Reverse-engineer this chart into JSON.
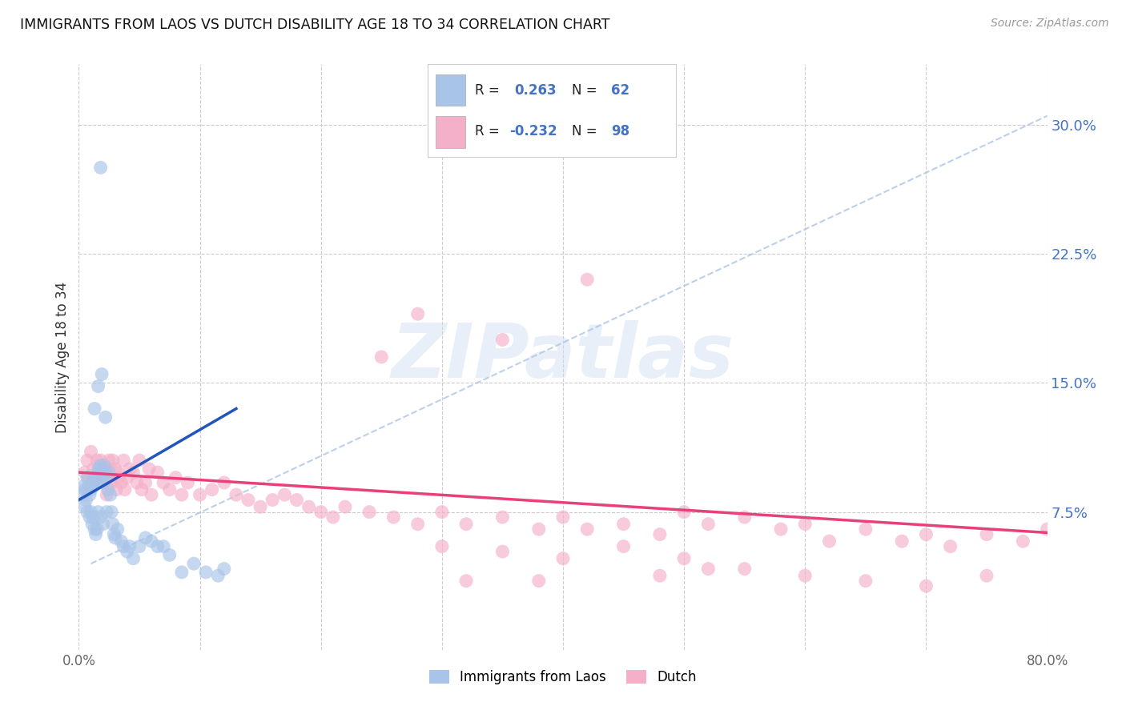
{
  "title": "IMMIGRANTS FROM LAOS VS DUTCH DISABILITY AGE 18 TO 34 CORRELATION CHART",
  "source": "Source: ZipAtlas.com",
  "ylabel": "Disability Age 18 to 34",
  "xlim": [
    0.0,
    0.8
  ],
  "ylim": [
    -0.005,
    0.335
  ],
  "xticks": [
    0.0,
    0.1,
    0.2,
    0.3,
    0.4,
    0.5,
    0.6,
    0.7,
    0.8
  ],
  "xticklabels": [
    "0.0%",
    "",
    "",
    "",
    "",
    "",
    "",
    "",
    "80.0%"
  ],
  "ytick_positions": [
    0.075,
    0.15,
    0.225,
    0.3
  ],
  "ytick_labels": [
    "7.5%",
    "15.0%",
    "22.5%",
    "30.0%"
  ],
  "blue_color": "#a8c4e8",
  "pink_color": "#f4b0c8",
  "blue_line_color": "#2255bb",
  "pink_line_color": "#e8407a",
  "dashed_line_color": "#b0c8e8",
  "watermark_text": "ZIPatlas",
  "background_color": "#ffffff",
  "grid_color": "#cccccc",
  "blue_scatter_x": [
    0.003,
    0.004,
    0.005,
    0.005,
    0.006,
    0.007,
    0.007,
    0.008,
    0.009,
    0.009,
    0.01,
    0.01,
    0.011,
    0.011,
    0.012,
    0.012,
    0.013,
    0.013,
    0.014,
    0.014,
    0.015,
    0.015,
    0.016,
    0.016,
    0.017,
    0.018,
    0.018,
    0.019,
    0.02,
    0.02,
    0.021,
    0.022,
    0.023,
    0.024,
    0.025,
    0.026,
    0.027,
    0.028,
    0.029,
    0.03,
    0.032,
    0.035,
    0.037,
    0.04,
    0.042,
    0.045,
    0.05,
    0.055,
    0.06,
    0.065,
    0.07,
    0.075,
    0.085,
    0.095,
    0.105,
    0.115,
    0.12,
    0.013,
    0.016,
    0.019,
    0.022,
    0.018
  ],
  "blue_scatter_y": [
    0.085,
    0.09,
    0.088,
    0.078,
    0.082,
    0.095,
    0.075,
    0.09,
    0.085,
    0.072,
    0.088,
    0.075,
    0.092,
    0.068,
    0.09,
    0.072,
    0.095,
    0.065,
    0.092,
    0.062,
    0.095,
    0.065,
    0.1,
    0.075,
    0.098,
    0.102,
    0.072,
    0.095,
    0.092,
    0.068,
    0.102,
    0.098,
    0.075,
    0.088,
    0.098,
    0.085,
    0.075,
    0.068,
    0.062,
    0.06,
    0.065,
    0.058,
    0.055,
    0.052,
    0.055,
    0.048,
    0.055,
    0.06,
    0.058,
    0.055,
    0.055,
    0.05,
    0.04,
    0.045,
    0.04,
    0.038,
    0.042,
    0.135,
    0.148,
    0.155,
    0.13,
    0.275
  ],
  "pink_scatter_x": [
    0.005,
    0.007,
    0.008,
    0.01,
    0.011,
    0.012,
    0.013,
    0.015,
    0.016,
    0.017,
    0.018,
    0.019,
    0.02,
    0.021,
    0.022,
    0.023,
    0.025,
    0.026,
    0.027,
    0.028,
    0.03,
    0.031,
    0.032,
    0.033,
    0.035,
    0.037,
    0.038,
    0.04,
    0.042,
    0.045,
    0.048,
    0.05,
    0.052,
    0.055,
    0.058,
    0.06,
    0.065,
    0.07,
    0.075,
    0.08,
    0.085,
    0.09,
    0.1,
    0.11,
    0.12,
    0.13,
    0.14,
    0.15,
    0.16,
    0.17,
    0.18,
    0.19,
    0.2,
    0.21,
    0.22,
    0.24,
    0.26,
    0.28,
    0.3,
    0.32,
    0.35,
    0.38,
    0.4,
    0.42,
    0.45,
    0.48,
    0.5,
    0.52,
    0.55,
    0.58,
    0.6,
    0.62,
    0.65,
    0.68,
    0.7,
    0.72,
    0.75,
    0.78,
    0.8,
    0.3,
    0.35,
    0.4,
    0.45,
    0.5,
    0.55,
    0.25,
    0.35,
    0.28,
    0.42,
    0.32,
    0.38,
    0.48,
    0.52,
    0.6,
    0.65,
    0.7,
    0.75
  ],
  "pink_scatter_y": [
    0.098,
    0.105,
    0.095,
    0.11,
    0.09,
    0.1,
    0.095,
    0.105,
    0.098,
    0.092,
    0.105,
    0.098,
    0.1,
    0.092,
    0.1,
    0.085,
    0.105,
    0.095,
    0.092,
    0.105,
    0.1,
    0.088,
    0.098,
    0.095,
    0.092,
    0.105,
    0.088,
    0.095,
    0.1,
    0.098,
    0.092,
    0.105,
    0.088,
    0.092,
    0.1,
    0.085,
    0.098,
    0.092,
    0.088,
    0.095,
    0.085,
    0.092,
    0.085,
    0.088,
    0.092,
    0.085,
    0.082,
    0.078,
    0.082,
    0.085,
    0.082,
    0.078,
    0.075,
    0.072,
    0.078,
    0.075,
    0.072,
    0.068,
    0.075,
    0.068,
    0.072,
    0.065,
    0.072,
    0.065,
    0.068,
    0.062,
    0.075,
    0.068,
    0.072,
    0.065,
    0.068,
    0.058,
    0.065,
    0.058,
    0.062,
    0.055,
    0.062,
    0.058,
    0.065,
    0.055,
    0.052,
    0.048,
    0.055,
    0.048,
    0.042,
    0.165,
    0.175,
    0.19,
    0.21,
    0.035,
    0.035,
    0.038,
    0.042,
    0.038,
    0.035,
    0.032,
    0.038
  ],
  "blue_trendline_x": [
    0.0,
    0.13
  ],
  "blue_trendline_y": [
    0.082,
    0.135
  ],
  "pink_trendline_x": [
    0.0,
    0.8
  ],
  "pink_trendline_y": [
    0.098,
    0.063
  ],
  "dashed_trendline_x": [
    0.01,
    0.8
  ],
  "dashed_trendline_y": [
    0.045,
    0.305
  ]
}
